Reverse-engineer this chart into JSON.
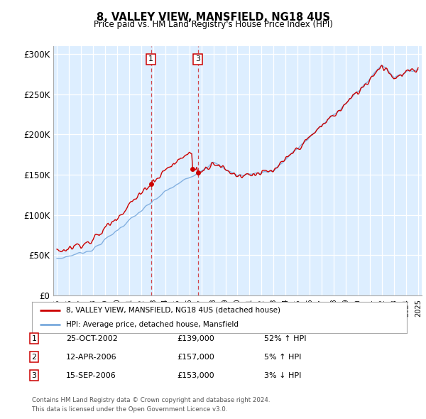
{
  "title": "8, VALLEY VIEW, MANSFIELD, NG18 4US",
  "subtitle": "Price paid vs. HM Land Registry's House Price Index (HPI)",
  "legend_line1": "8, VALLEY VIEW, MANSFIELD, NG18 4US (detached house)",
  "legend_line2": "HPI: Average price, detached house, Mansfield",
  "transactions": [
    {
      "num": 1,
      "date": "25-OCT-2002",
      "price": 139000,
      "pct": "52%",
      "dir": "↑",
      "date_val": 2002.82
    },
    {
      "num": 2,
      "date": "12-APR-2006",
      "price": 157000,
      "pct": "5%",
      "dir": "↑",
      "date_val": 2006.28
    },
    {
      "num": 3,
      "date": "15-SEP-2006",
      "price": 153000,
      "pct": "3%",
      "dir": "↓",
      "date_val": 2006.71
    }
  ],
  "footnote1": "Contains HM Land Registry data © Crown copyright and database right 2024.",
  "footnote2": "This data is licensed under the Open Government Licence v3.0.",
  "hpi_color": "#7aaadd",
  "price_color": "#cc0000",
  "plot_bg": "#ddeeff",
  "ylim": [
    0,
    310000
  ],
  "yticks": [
    0,
    50000,
    100000,
    150000,
    200000,
    250000,
    300000
  ],
  "ylabels": [
    "£0",
    "£50K",
    "£100K",
    "£150K",
    "£200K",
    "£250K",
    "£300K"
  ],
  "start_year": 1995,
  "end_year": 2025,
  "vline_label_nums": [
    1,
    3
  ],
  "vline_dates": [
    2002.82,
    2006.71
  ],
  "row_data": [
    [
      "1",
      "25-OCT-2002",
      "£139,000",
      "52% ↑ HPI"
    ],
    [
      "2",
      "12-APR-2006",
      "£157,000",
      "5% ↑ HPI"
    ],
    [
      "3",
      "15-SEP-2006",
      "£153,000",
      "3% ↓ HPI"
    ]
  ]
}
